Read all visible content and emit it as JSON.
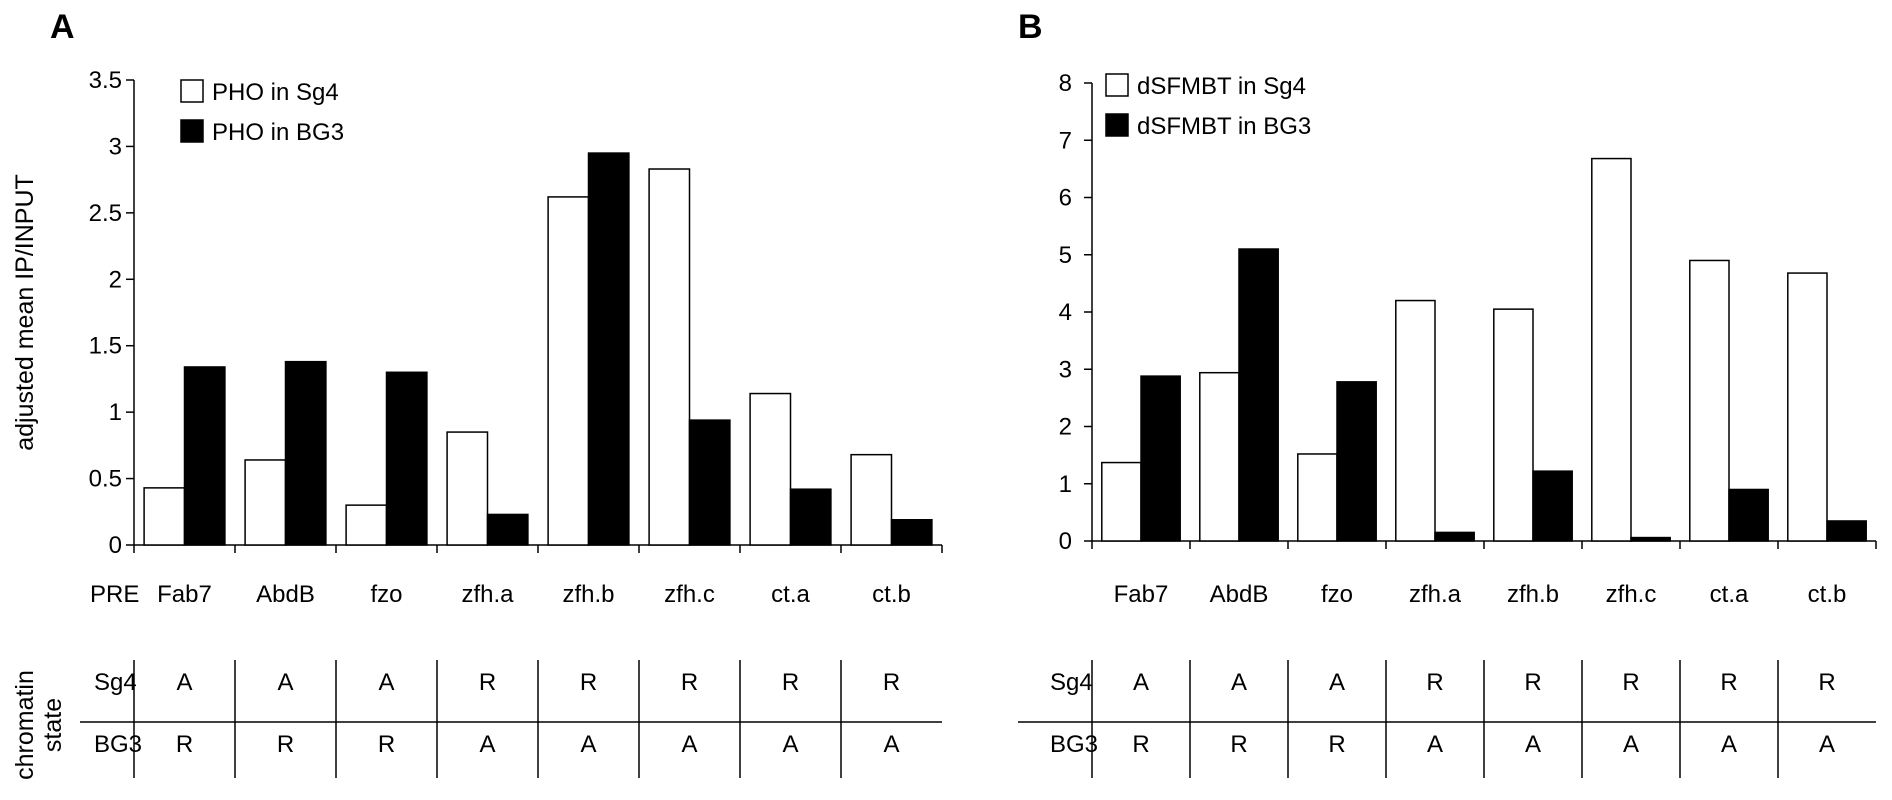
{
  "chart_data": [
    {
      "panel": "A",
      "type": "bar",
      "ylabel": "adjusted mean IP/INPUT",
      "xlabel": "PRE",
      "categories": [
        "Fab7",
        "AbdB",
        "fzo",
        "zfh.a",
        "zfh.b",
        "zfh.c",
        "ct.a",
        "ct.b"
      ],
      "ylim": [
        0,
        3.5
      ],
      "yticks": [
        "0",
        "0.5",
        "1",
        "1.5",
        "2",
        "2.5",
        "3",
        "3.5"
      ],
      "series": [
        {
          "name": "PHO in Sg4",
          "fill": "#ffffff",
          "values": [
            0.43,
            0.64,
            0.3,
            0.85,
            2.62,
            2.83,
            1.14,
            0.68
          ]
        },
        {
          "name": "PHO in BG3",
          "fill": "#000000",
          "values": [
            1.34,
            1.38,
            1.3,
            0.23,
            2.95,
            0.94,
            0.42,
            0.19
          ]
        }
      ],
      "legend_position": "top-left",
      "chromatin_state": {
        "label_lines": [
          "chromatin",
          "state"
        ],
        "rows": [
          {
            "cell_line": "Sg4",
            "states": [
              "A",
              "A",
              "A",
              "R",
              "R",
              "R",
              "R",
              "R"
            ]
          },
          {
            "cell_line": "BG3",
            "states": [
              "R",
              "R",
              "R",
              "A",
              "A",
              "A",
              "A",
              "A"
            ]
          }
        ]
      }
    },
    {
      "panel": "B",
      "type": "bar",
      "ylabel": "",
      "xlabel": "",
      "categories": [
        "Fab7",
        "AbdB",
        "fzo",
        "zfh.a",
        "zfh.b",
        "zfh.c",
        "ct.a",
        "ct.b"
      ],
      "ylim": [
        0,
        8
      ],
      "yticks": [
        "0",
        "1",
        "2",
        "3",
        "4",
        "5",
        "6",
        "7",
        "8"
      ],
      "series": [
        {
          "name": "dSFMBT in Sg4",
          "fill": "#ffffff",
          "values": [
            1.37,
            2.94,
            1.52,
            4.2,
            4.05,
            6.68,
            4.9,
            4.68
          ]
        },
        {
          "name": "dSFMBT in BG3",
          "fill": "#000000",
          "values": [
            2.88,
            5.1,
            2.78,
            0.15,
            1.22,
            0.06,
            0.9,
            0.35
          ]
        }
      ],
      "legend_position": "top-left",
      "chromatin_state": {
        "label_lines": [],
        "rows": [
          {
            "cell_line": "Sg4",
            "states": [
              "A",
              "A",
              "A",
              "R",
              "R",
              "R",
              "R",
              "R"
            ]
          },
          {
            "cell_line": "BG3",
            "states": [
              "R",
              "R",
              "R",
              "A",
              "A",
              "A",
              "A",
              "A"
            ]
          }
        ]
      }
    }
  ]
}
